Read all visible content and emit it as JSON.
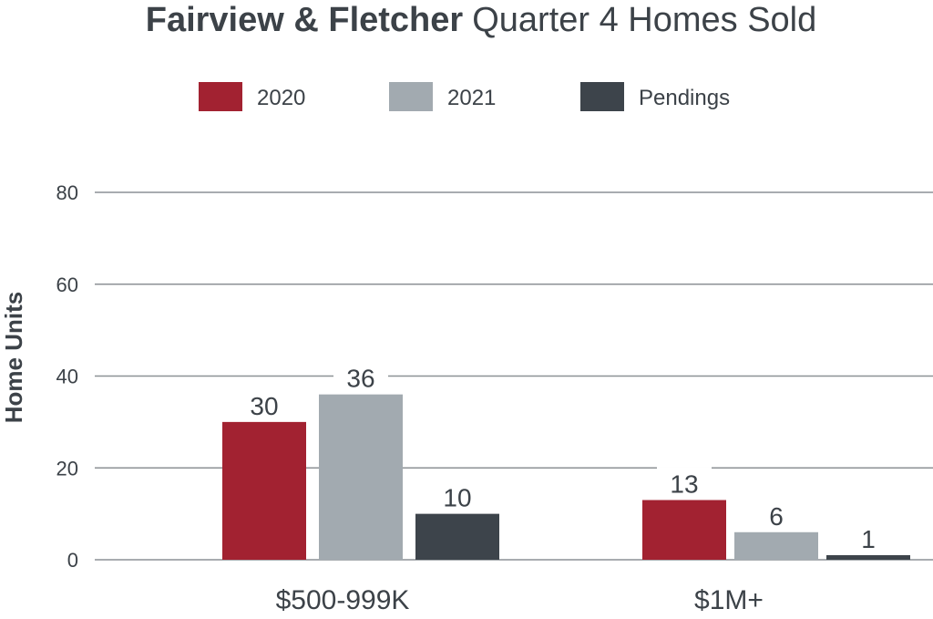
{
  "chart_data": {
    "type": "bar",
    "title_bold": "Fairview & Fletcher",
    "title_regular": "Quarter 4 Homes Sold",
    "xlabel": "",
    "ylabel": "Home Units",
    "ylim": [
      0,
      80
    ],
    "yticks": [
      0,
      20,
      40,
      60,
      80
    ],
    "categories": [
      "$500-999K",
      "$1M+"
    ],
    "series": [
      {
        "name": "2020",
        "color": "#a22231",
        "values": [
          30,
          13
        ]
      },
      {
        "name": "2021",
        "color": "#a2aab0",
        "values": [
          36,
          6
        ]
      },
      {
        "name": "Pendings",
        "color": "#3d444b",
        "values": [
          10,
          1
        ]
      }
    ],
    "grid": true,
    "legend_position": "top-center"
  }
}
